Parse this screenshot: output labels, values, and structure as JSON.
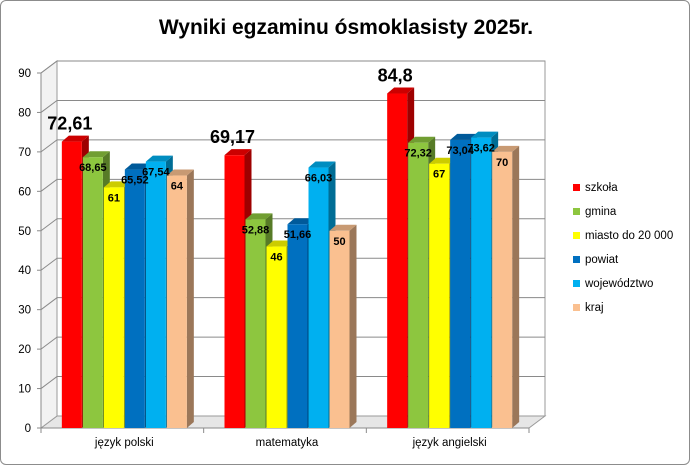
{
  "chart_data": {
    "type": "bar",
    "title": "Wyniki egzaminu ósmoklasisty 2025r.",
    "xlabel": "",
    "ylabel": "",
    "ylim": [
      0,
      90
    ],
    "yticks": [
      0,
      10,
      20,
      30,
      40,
      50,
      60,
      70,
      80,
      90
    ],
    "grid": true,
    "legend_position": "right",
    "categories": [
      "język polski",
      "matematyka",
      "język angielski"
    ],
    "series": [
      {
        "name": "szkoła",
        "color": "#ff0000",
        "values": [
          72.61,
          69.17,
          84.8
        ],
        "labels": [
          "72,61",
          "69,17",
          "84,8"
        ]
      },
      {
        "name": "gmina",
        "color": "#8dc63f",
        "values": [
          68.65,
          52.88,
          72.32
        ],
        "labels": [
          "68,65",
          "52,88",
          "72,32"
        ]
      },
      {
        "name": "miasto do 20 000",
        "color": "#ffff00",
        "values": [
          61,
          46,
          67
        ],
        "labels": [
          "61",
          "46",
          "67"
        ]
      },
      {
        "name": "powiat",
        "color": "#0070c0",
        "values": [
          65.52,
          51.66,
          73.04
        ],
        "labels": [
          "65,52",
          "51,66",
          "73,04"
        ]
      },
      {
        "name": "województwo",
        "color": "#00b0f0",
        "values": [
          67.54,
          66.03,
          73.62
        ],
        "labels": [
          "67,54",
          "66,03",
          "73,62"
        ]
      },
      {
        "name": "kraj",
        "color": "#fac090",
        "values": [
          64,
          50,
          70
        ],
        "labels": [
          "64",
          "50",
          "70"
        ]
      }
    ]
  }
}
